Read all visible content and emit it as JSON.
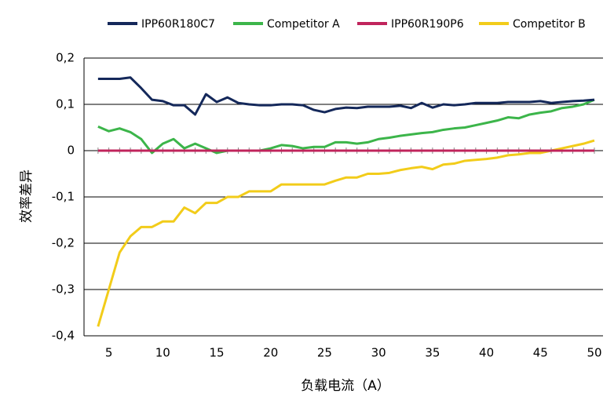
{
  "chart_data": {
    "type": "line",
    "xlabel": "负载电流（A）",
    "ylabel": "效率差异",
    "x": [
      4,
      5,
      6,
      7,
      8,
      9,
      10,
      11,
      12,
      13,
      14,
      15,
      16,
      17,
      18,
      19,
      20,
      21,
      22,
      23,
      24,
      25,
      26,
      27,
      28,
      29,
      30,
      31,
      32,
      33,
      34,
      35,
      36,
      37,
      38,
      39,
      40,
      41,
      42,
      43,
      44,
      45,
      46,
      47,
      48,
      49,
      50
    ],
    "series": [
      {
        "name": "IPP60R180C7",
        "color": "#14285a",
        "values": [
          0.155,
          0.155,
          0.155,
          0.158,
          0.135,
          0.11,
          0.107,
          0.098,
          0.098,
          0.078,
          0.122,
          0.105,
          0.115,
          0.103,
          0.1,
          0.098,
          0.098,
          0.1,
          0.1,
          0.098,
          0.088,
          0.083,
          0.09,
          0.093,
          0.092,
          0.095,
          0.095,
          0.095,
          0.097,
          0.092,
          0.103,
          0.093,
          0.1,
          0.098,
          0.1,
          0.103,
          0.103,
          0.103,
          0.105,
          0.105,
          0.105,
          0.107,
          0.103,
          0.105,
          0.107,
          0.108,
          0.11
        ]
      },
      {
        "name": "Competitor A",
        "color": "#3cb54a",
        "values": [
          0.052,
          0.042,
          0.048,
          0.04,
          0.025,
          -0.005,
          0.015,
          0.025,
          0.005,
          0.015,
          0.005,
          -0.005,
          0,
          0,
          0,
          0,
          0.005,
          0.012,
          0.01,
          0.005,
          0.008,
          0.008,
          0.018,
          0.018,
          0.015,
          0.018,
          0.025,
          0.028,
          0.032,
          0.035,
          0.038,
          0.04,
          0.045,
          0.048,
          0.05,
          0.055,
          0.06,
          0.065,
          0.072,
          0.07,
          0.078,
          0.082,
          0.085,
          0.092,
          0.095,
          0.1,
          0.11
        ]
      },
      {
        "name": "IPP60R190P6",
        "color": "#c0245c",
        "values": [
          0,
          0,
          0,
          0,
          0,
          0,
          0,
          0,
          0,
          0,
          0,
          0,
          0,
          0,
          0,
          0,
          0,
          0,
          0,
          0,
          0,
          0,
          0,
          0,
          0,
          0,
          0,
          0,
          0,
          0,
          0,
          0,
          0,
          0,
          0,
          0,
          0,
          0,
          0,
          0,
          0,
          0,
          0,
          0,
          0,
          0,
          0
        ]
      },
      {
        "name": "Competitor B",
        "color": "#f2cc1a",
        "values": [
          -0.38,
          -0.3,
          -0.22,
          -0.185,
          -0.165,
          -0.165,
          -0.153,
          -0.153,
          -0.123,
          -0.135,
          -0.113,
          -0.113,
          -0.1,
          -0.1,
          -0.088,
          -0.088,
          -0.088,
          -0.073,
          -0.073,
          -0.073,
          -0.073,
          -0.073,
          -0.065,
          -0.058,
          -0.058,
          -0.05,
          -0.05,
          -0.048,
          -0.042,
          -0.038,
          -0.035,
          -0.04,
          -0.03,
          -0.028,
          -0.022,
          -0.02,
          -0.018,
          -0.015,
          -0.01,
          -0.008,
          -0.005,
          -0.005,
          0,
          0.005,
          0.01,
          0.015,
          0.022
        ]
      }
    ],
    "xlim": [
      2.7,
      50.8
    ],
    "xticks": [
      5,
      10,
      15,
      20,
      25,
      30,
      35,
      40,
      45,
      50
    ],
    "ylim": [
      -0.4,
      0.2
    ],
    "yticks": [
      {
        "value": 0.2,
        "label": "0,2"
      },
      {
        "value": 0.1,
        "label": "0,1"
      },
      0,
      {
        "value": -0.1,
        "label": "-0,1"
      },
      {
        "value": -0.2,
        "label": "-0,2"
      },
      {
        "value": -0.3,
        "label": "-0,3"
      },
      {
        "value": -0.4,
        "label": "-0,4"
      }
    ],
    "grid": true,
    "legend": "top"
  }
}
